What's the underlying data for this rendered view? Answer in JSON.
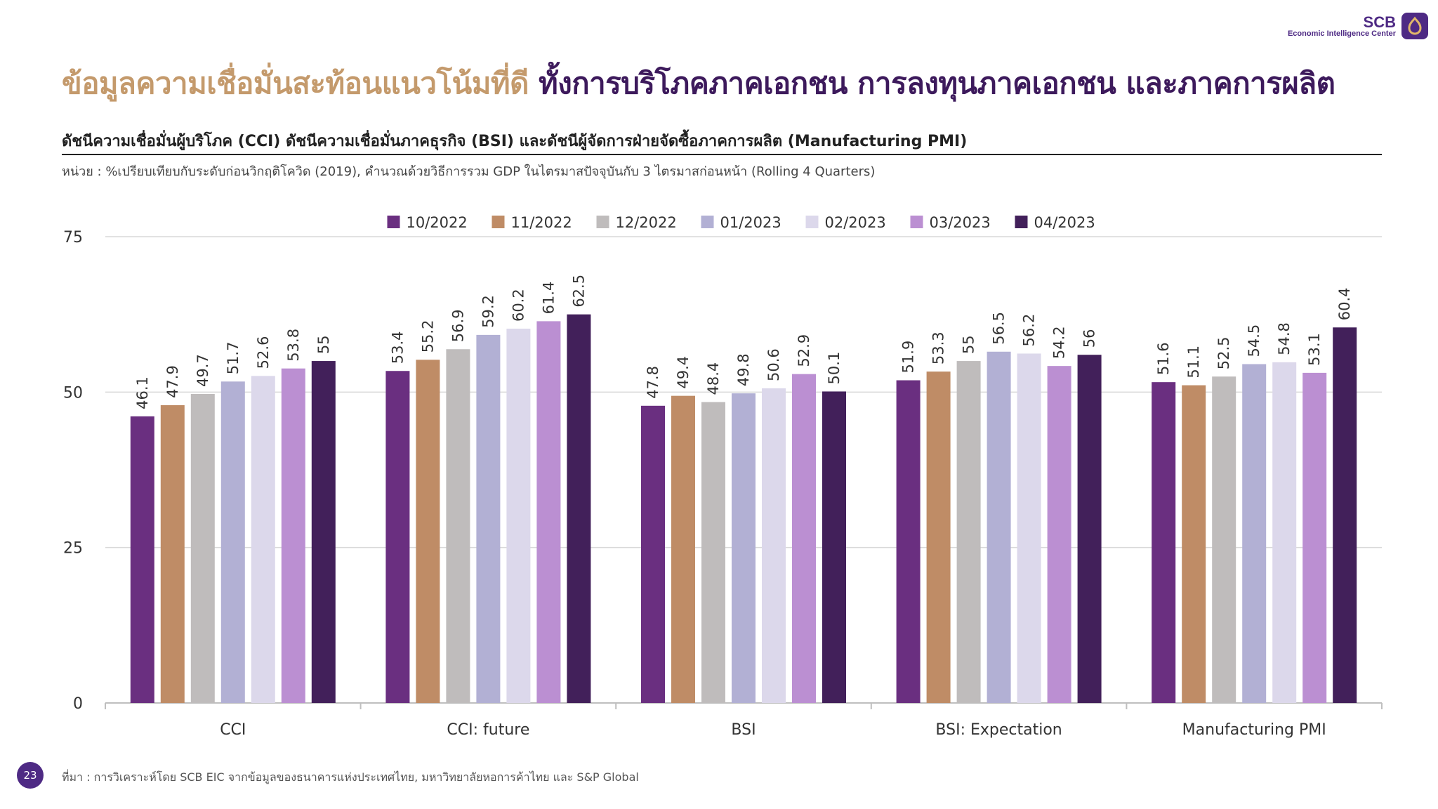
{
  "header": {
    "brand": "SCB",
    "brand_sub": "Economic Intelligence Center",
    "title_part1": "ข้อมูลความเชื่อมั่นสะท้อนแนวโน้มที่ดี",
    "title_part2": "ทั้งการบริโภคภาคเอกชน การลงทุนภาคเอกชน และภาคการผลิต",
    "subtitle": "ดัชนีความเชื่อมั่นผู้บริโภค (CCI) ดัชนีความเชื่อมั่นภาคธุรกิจ (BSI) และดัชนีผู้จัดการฝ่ายจัดซื้อภาคการผลิต (Manufacturing PMI)",
    "unit_note": "หน่วย : %เปรียบเทียบกับระดับก่อนวิกฤติโควิด (2019), คำนวณด้วยวิธีการรวม GDP ในไตรมาสปัจจุบันกับ 3 ไตรมาสก่อนหน้า (Rolling 4 Quarters)"
  },
  "footer": {
    "page_number": "23",
    "source": "ที่มา : การวิเคราะห์โดย SCB EIC จากข้อมูลของธนาคารแห่งประเทศไทย, มหาวิทยาลัยหอการค้าไทย และ S&P Global"
  },
  "colors": {
    "brand": "#4e2a84",
    "title_accent": "#c49a6c",
    "title_main": "#3d1a5c"
  },
  "chart_data": {
    "type": "bar",
    "categories": [
      "CCI",
      "CCI: future",
      "BSI",
      "BSI: Expectation",
      "Manufacturing PMI"
    ],
    "ylim": [
      0,
      75
    ],
    "yticks": [
      0,
      25,
      50,
      75
    ],
    "grid": true,
    "legend_position": "top",
    "series": [
      {
        "name": "10/2022",
        "color": "#6a2f80",
        "values": [
          46.1,
          53.4,
          47.8,
          51.9,
          51.6
        ]
      },
      {
        "name": "11/2022",
        "color": "#bf8c66",
        "values": [
          47.9,
          55.2,
          49.4,
          53.3,
          51.1
        ]
      },
      {
        "name": "12/2022",
        "color": "#bfbcbc",
        "values": [
          49.7,
          56.9,
          48.4,
          55,
          52.5
        ]
      },
      {
        "name": "01/2023",
        "color": "#b2b0d4",
        "values": [
          51.7,
          59.2,
          49.8,
          56.5,
          54.5
        ]
      },
      {
        "name": "02/2023",
        "color": "#dcd8eb",
        "values": [
          52.6,
          60.2,
          50.6,
          56.2,
          54.8
        ]
      },
      {
        "name": "03/2023",
        "color": "#bb8fd2",
        "values": [
          53.8,
          61.4,
          52.9,
          54.2,
          53.1
        ]
      },
      {
        "name": "04/2023",
        "color": "#42205a",
        "values": [
          55,
          62.5,
          50.1,
          56,
          60.4
        ]
      }
    ]
  }
}
